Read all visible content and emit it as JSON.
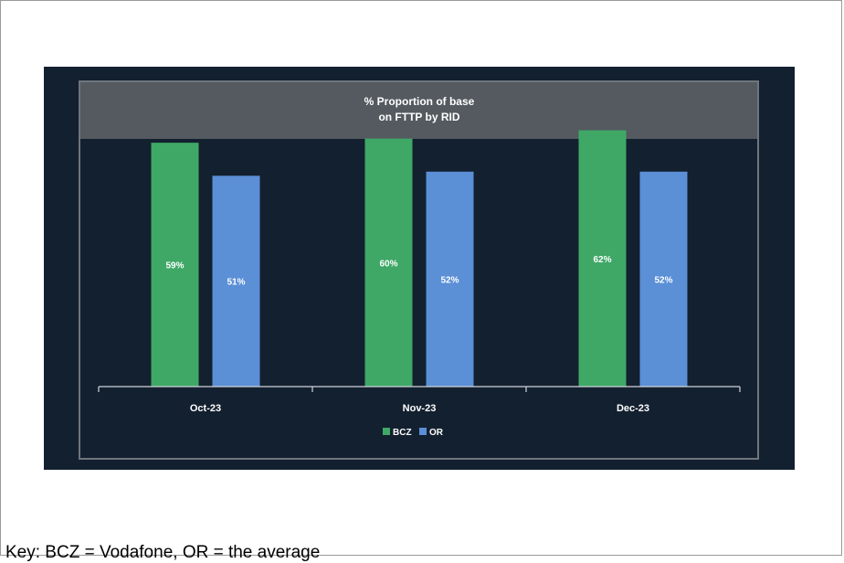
{
  "chart_data": {
    "type": "bar",
    "title": "% Proportion of base",
    "subtitle": "on FTTP by RID",
    "categories": [
      "Oct-23",
      "Nov-23",
      "Dec-23"
    ],
    "series": [
      {
        "name": "BCZ",
        "values": [
          59,
          60,
          62
        ],
        "labels": [
          "59%",
          "60%",
          "62%"
        ],
        "color": "#3fa866"
      },
      {
        "name": "OR",
        "values": [
          51,
          52,
          52
        ],
        "labels": [
          "51%",
          "52%",
          "52%"
        ],
        "color": "#5b8fd6"
      }
    ],
    "ylim": [
      0,
      65
    ],
    "grid": false,
    "legend": "bottom-center",
    "colors": {
      "background": "#13202f",
      "header": "#545a60",
      "frame": "#6e757c",
      "axis": "#cfd4d9",
      "text": "#ffffff"
    }
  },
  "footnote": "Key: BCZ = Vodafone, OR = the average"
}
